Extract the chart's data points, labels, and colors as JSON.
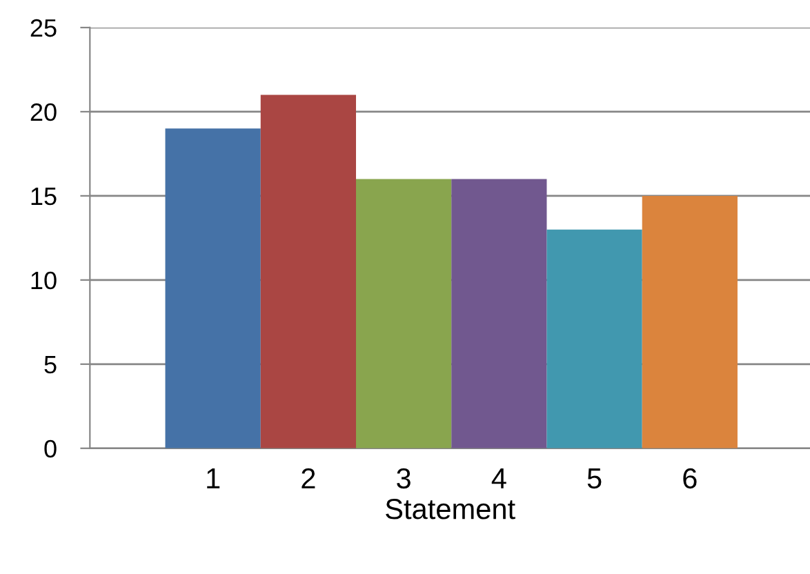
{
  "chart_data": {
    "type": "bar",
    "xlabel": "Statement",
    "categories": [
      "1",
      "2",
      "3",
      "4",
      "5",
      "6"
    ],
    "values": [
      19,
      21,
      16,
      16,
      13,
      15
    ],
    "colors": [
      "#4572a7",
      "#aa4643",
      "#89a54e",
      "#71588f",
      "#4198af",
      "#db843d"
    ],
    "ylim": [
      0,
      25
    ],
    "yticks": [
      0,
      5,
      10,
      15,
      20,
      25
    ],
    "grid": "y",
    "legend": false
  }
}
